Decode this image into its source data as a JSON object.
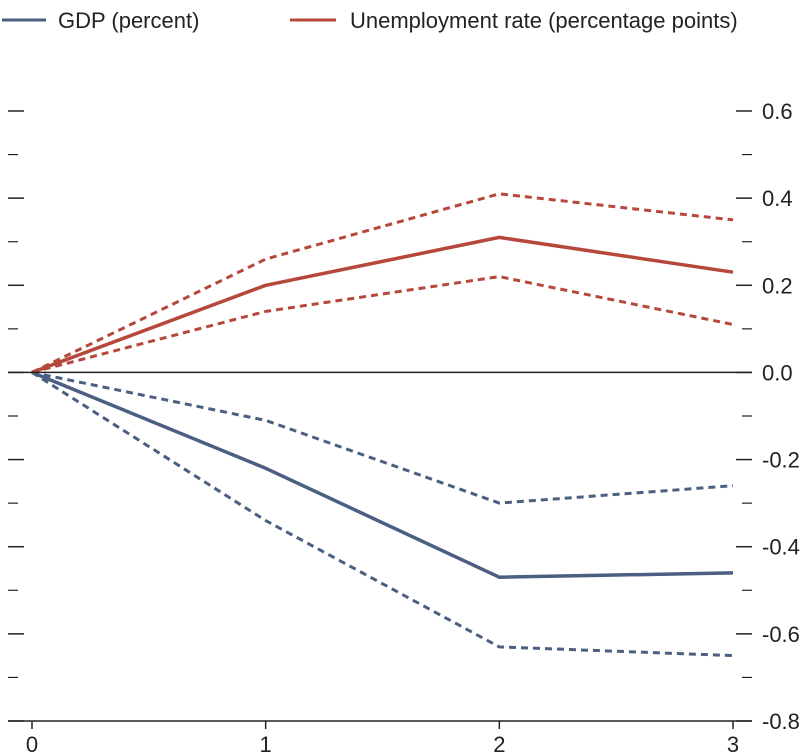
{
  "chart_data": {
    "type": "line",
    "title": "",
    "xlabel": "",
    "ylabel": "",
    "x": [
      0,
      1,
      2,
      3
    ],
    "x_tick_labels": [
      "0",
      "1",
      "2",
      "3"
    ],
    "ylim": [
      -0.8,
      0.6
    ],
    "y_tick_labels": [
      "0.6",
      "0.4",
      "0.2",
      "0.0",
      "-0.2",
      "-0.4",
      "-0.6",
      "-0.8"
    ],
    "y_tick_values": [
      0.6,
      0.4,
      0.2,
      0.0,
      -0.2,
      -0.4,
      -0.6,
      -0.8
    ],
    "y_minor_tick_values": [
      0.5,
      0.3,
      0.1,
      -0.1,
      -0.3,
      -0.5,
      -0.7
    ],
    "grid": false,
    "legend_position": "top",
    "series": [
      {
        "name": "GDP (percent)",
        "color": "#4a5f82",
        "style": "solid",
        "values": [
          0,
          -0.22,
          -0.47,
          -0.46
        ]
      },
      {
        "color": "#4a5f82",
        "style": "dashed",
        "values": [
          0,
          -0.11,
          -0.3,
          -0.26
        ]
      },
      {
        "color": "#4a5f82",
        "style": "dashed",
        "values": [
          0,
          -0.34,
          -0.63,
          -0.65
        ]
      },
      {
        "name": "Unemployment rate (percentage points)",
        "color": "#b5483a",
        "style": "solid",
        "values": [
          0,
          0.2,
          0.31,
          0.23
        ]
      },
      {
        "color": "#b5483a",
        "style": "dashed",
        "values": [
          0,
          0.26,
          0.41,
          0.35
        ]
      },
      {
        "color": "#b5483a",
        "style": "dashed",
        "values": [
          0,
          0.14,
          0.22,
          0.11
        ]
      }
    ]
  }
}
